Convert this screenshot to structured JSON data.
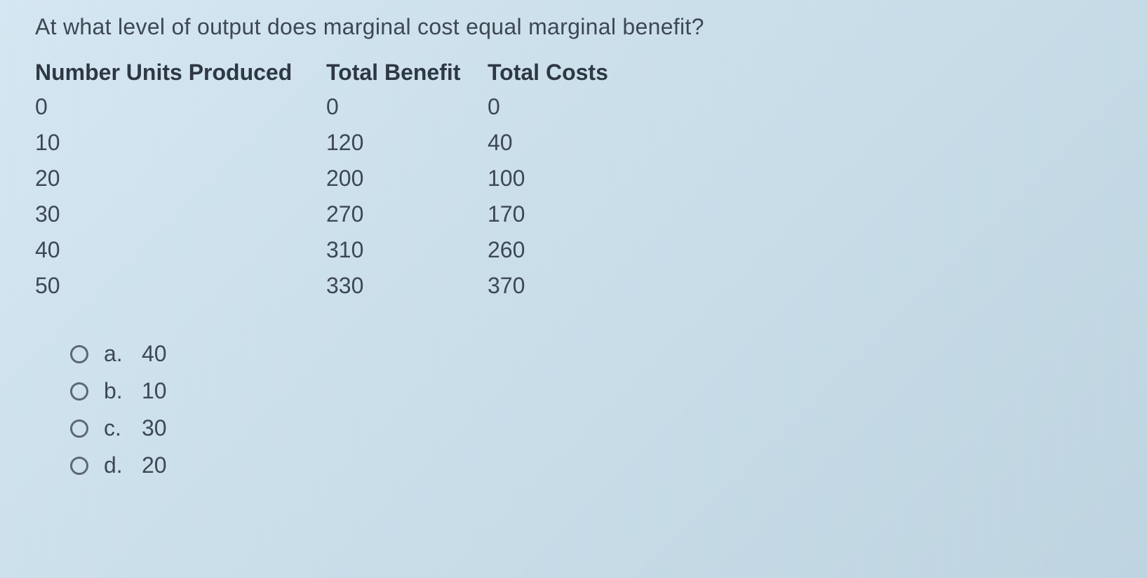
{
  "question": "At what level of output does marginal cost equal marginal benefit?",
  "table": {
    "headers": {
      "units": "Number Units Produced",
      "benefit": "Total Benefit",
      "costs": "Total Costs"
    },
    "rows": [
      {
        "units": "0",
        "benefit": "0",
        "costs": "0"
      },
      {
        "units": "10",
        "benefit": "120",
        "costs": "40"
      },
      {
        "units": "20",
        "benefit": "200",
        "costs": "100"
      },
      {
        "units": "30",
        "benefit": "270",
        "costs": "170"
      },
      {
        "units": "40",
        "benefit": "310",
        "costs": "260"
      },
      {
        "units": "50",
        "benefit": "330",
        "costs": "370"
      }
    ]
  },
  "options": [
    {
      "letter": "a.",
      "value": "40"
    },
    {
      "letter": "b.",
      "value": "10"
    },
    {
      "letter": "c.",
      "value": "30"
    },
    {
      "letter": "d.",
      "value": "20"
    }
  ],
  "colors": {
    "background_start": "#d4e6f1",
    "background_end": "#bdd4e0",
    "text": "#3a4550",
    "header_text": "#2a3540",
    "radio_border": "#5a6570"
  }
}
